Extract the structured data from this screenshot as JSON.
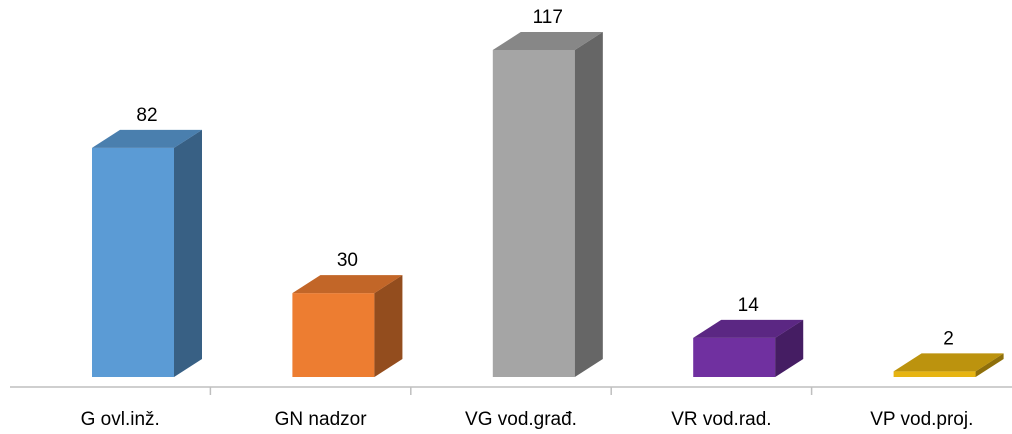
{
  "chart_data": {
    "type": "bar3d",
    "categories": [
      "G ovl.inž.",
      "GN nadzor",
      "VG vod.građ.",
      "VR vod.rad.",
      "VP vod.proj."
    ],
    "values": [
      82,
      30,
      117,
      14,
      2
    ],
    "colors": [
      "#5b9bd5",
      "#ed7d31",
      "#a5a5a5",
      "#7030a0",
      "#e6b412"
    ]
  }
}
